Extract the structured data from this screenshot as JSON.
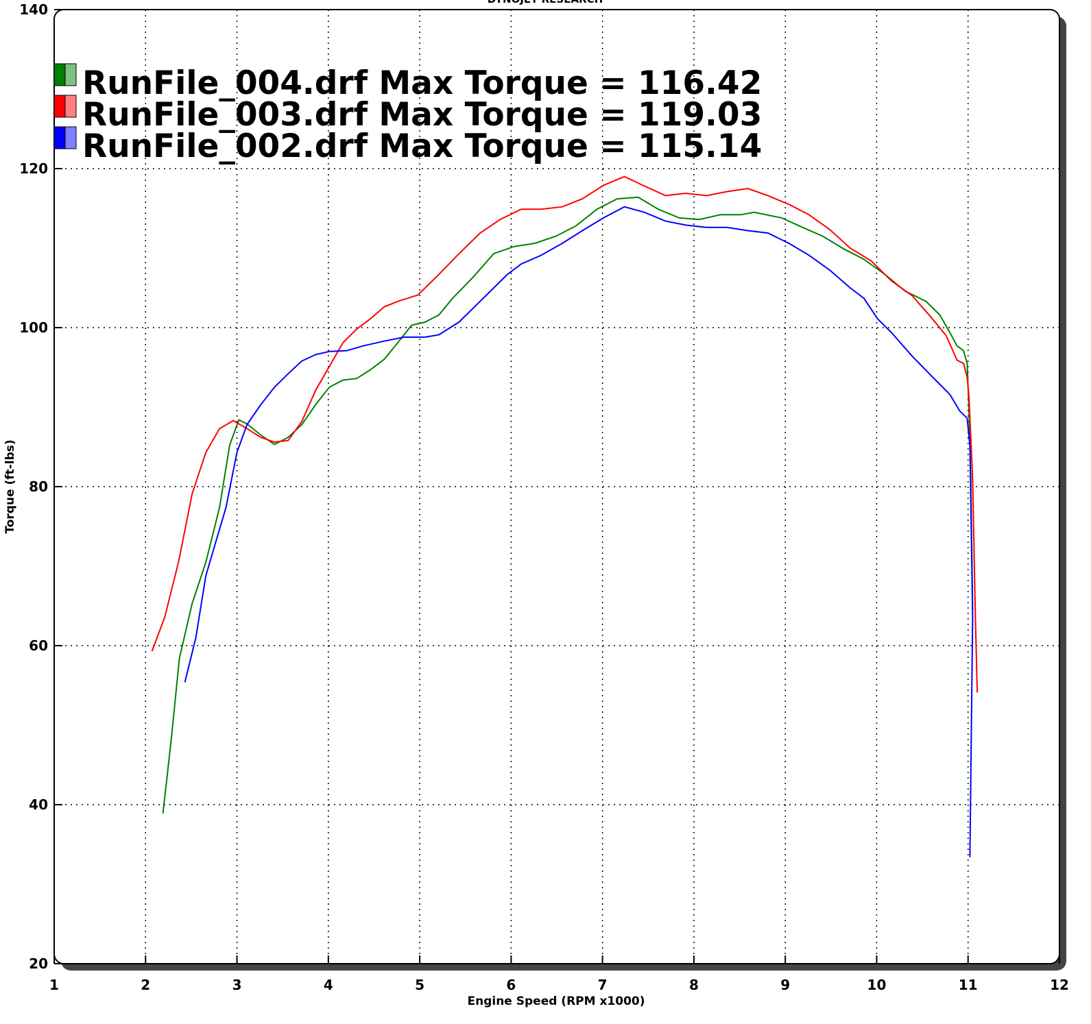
{
  "chart_data": {
    "type": "line",
    "subtitle": "DYNOJET RESEARCH",
    "x_label": "Engine Speed (RPM x1000)",
    "y_label": "Torque (ft-lbs)",
    "xlim": [
      1,
      12
    ],
    "xticks": [
      1,
      2,
      3,
      4,
      5,
      6,
      7,
      8,
      9,
      10,
      11,
      12
    ],
    "ylim": [
      20,
      140
    ],
    "yticks": [
      20,
      40,
      60,
      80,
      100,
      120,
      140
    ],
    "grid": true,
    "legend": "top-left",
    "series": [
      {
        "name": "RunFile_004.drf Max Torque = 116.42",
        "color": "#008000",
        "x": [
          2.19,
          2.28,
          2.37,
          2.51,
          2.66,
          2.81,
          2.92,
          3.02,
          3.11,
          3.26,
          3.41,
          3.56,
          3.71,
          3.86,
          4.01,
          4.16,
          4.31,
          4.46,
          4.61,
          4.76,
          4.91,
          5.06,
          5.21,
          5.36,
          5.58,
          5.81,
          6.03,
          6.26,
          6.49,
          6.71,
          6.94,
          7.16,
          7.39,
          7.61,
          7.84,
          8.06,
          8.29,
          8.51,
          8.66,
          8.96,
          9.19,
          9.41,
          9.64,
          9.86,
          10.09,
          10.31,
          10.54,
          10.69,
          10.8,
          10.88,
          10.95,
          10.99,
          11.01,
          11.03,
          11.05
        ],
        "values": [
          38.9,
          48.1,
          58.4,
          65.3,
          70.5,
          77.4,
          85.2,
          88.4,
          87.9,
          86.5,
          85.3,
          86.2,
          87.8,
          90.3,
          92.5,
          93.4,
          93.6,
          94.7,
          96.0,
          98.1,
          100.3,
          100.7,
          101.6,
          103.7,
          106.3,
          109.3,
          110.2,
          110.6,
          111.5,
          112.8,
          114.9,
          116.2,
          116.4,
          114.9,
          113.8,
          113.6,
          114.2,
          114.2,
          114.5,
          113.8,
          112.6,
          111.5,
          109.9,
          108.6,
          106.7,
          104.6,
          103.3,
          101.6,
          99.4,
          97.7,
          97.1,
          95.5,
          89.5,
          80.9,
          64.5
        ]
      },
      {
        "name": "RunFile_003.drf Max Torque = 119.03",
        "color": "#ff0000",
        "x": [
          2.07,
          2.21,
          2.36,
          2.51,
          2.66,
          2.81,
          2.96,
          3.11,
          3.26,
          3.41,
          3.56,
          3.71,
          3.86,
          4.01,
          4.16,
          4.31,
          4.46,
          4.61,
          4.76,
          4.98,
          5.21,
          5.43,
          5.66,
          5.88,
          6.11,
          6.33,
          6.56,
          6.78,
          7.01,
          7.24,
          7.46,
          7.69,
          7.91,
          8.14,
          8.36,
          8.59,
          8.81,
          9.04,
          9.26,
          9.49,
          9.71,
          9.94,
          10.16,
          10.39,
          10.61,
          10.76,
          10.88,
          10.95,
          10.99,
          11.01,
          11.05,
          11.08,
          11.1
        ],
        "values": [
          59.3,
          63.6,
          70.5,
          79.1,
          84.3,
          87.3,
          88.3,
          87.3,
          86.2,
          85.6,
          85.8,
          88.2,
          92.1,
          95.1,
          98.1,
          99.8,
          101.1,
          102.6,
          103.3,
          104.1,
          106.7,
          109.3,
          111.9,
          113.6,
          114.9,
          114.9,
          115.2,
          116.2,
          117.9,
          119.0,
          117.8,
          116.6,
          116.9,
          116.6,
          117.1,
          117.5,
          116.6,
          115.5,
          114.2,
          112.3,
          110.0,
          108.4,
          105.9,
          104.0,
          101.1,
          99.0,
          95.9,
          95.5,
          93.8,
          91.2,
          80.9,
          63.6,
          54.1
        ]
      },
      {
        "name": "RunFile_002.drf Max Torque = 115.14",
        "color": "#0000ff",
        "x": [
          2.43,
          2.55,
          2.66,
          2.77,
          2.88,
          3.0,
          3.11,
          3.26,
          3.41,
          3.56,
          3.71,
          3.86,
          4.01,
          4.2,
          4.38,
          4.61,
          4.83,
          5.06,
          5.21,
          5.43,
          5.66,
          5.81,
          5.96,
          6.11,
          6.33,
          6.56,
          6.78,
          7.01,
          7.24,
          7.46,
          7.69,
          7.91,
          8.14,
          8.36,
          8.59,
          8.81,
          9.04,
          9.26,
          9.49,
          9.71,
          9.86,
          10.01,
          10.16,
          10.39,
          10.61,
          10.8,
          10.91,
          10.99,
          11.02,
          11.05,
          11.02
        ],
        "values": [
          55.4,
          61.0,
          68.8,
          73.1,
          77.4,
          84.3,
          87.8,
          90.3,
          92.5,
          94.2,
          95.8,
          96.6,
          97.0,
          97.1,
          97.7,
          98.3,
          98.8,
          98.8,
          99.1,
          100.7,
          103.3,
          105.0,
          106.7,
          108.0,
          109.1,
          110.6,
          112.2,
          113.8,
          115.2,
          114.5,
          113.4,
          112.9,
          112.6,
          112.6,
          112.2,
          111.9,
          110.6,
          109.1,
          107.2,
          105.0,
          103.7,
          101.1,
          99.4,
          96.4,
          93.8,
          91.6,
          89.5,
          88.6,
          85.2,
          63.6,
          33.4
        ]
      }
    ]
  }
}
